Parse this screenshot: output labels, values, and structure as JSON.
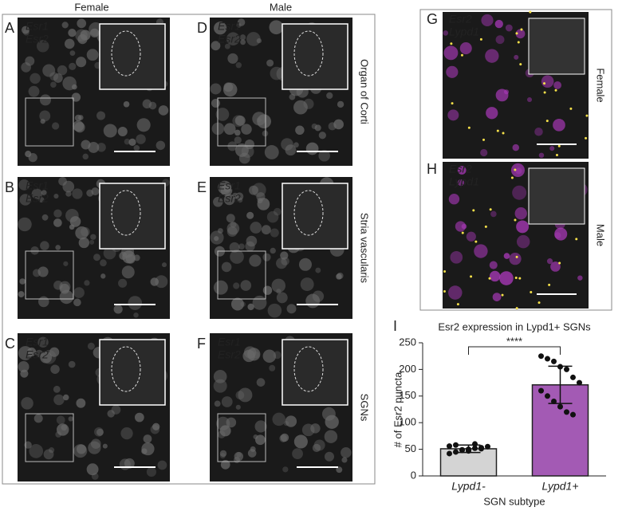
{
  "figure": {
    "column_headers": [
      "Female",
      "Male"
    ],
    "row_labels": [
      "Organ of Corti",
      "Stria vascularis",
      "SGNs"
    ],
    "panels": [
      {
        "letter": "A",
        "labels": [
          "Esr1",
          "Esr2"
        ]
      },
      {
        "letter": "B",
        "labels": [
          "Esr1",
          "Esr2"
        ]
      },
      {
        "letter": "C",
        "labels": [
          "Esr1",
          "Esr2"
        ]
      },
      {
        "letter": "D",
        "labels": [
          "Esr1",
          "Esr2"
        ]
      },
      {
        "letter": "E",
        "labels": [
          "Esr1",
          "Esr2"
        ]
      },
      {
        "letter": "F",
        "labels": [
          "Esr1",
          "Esr2"
        ]
      }
    ],
    "right_panels": [
      {
        "letter": "G",
        "labels": [
          "Esr2",
          "Lypd1"
        ],
        "side_label": "Female"
      },
      {
        "letter": "H",
        "labels": [
          "Esr2",
          "Lypd1"
        ],
        "side_label": "Male"
      }
    ]
  },
  "chart_data": {
    "type": "bar",
    "panel_letter": "I",
    "title": "Esr2 expression in Lypd1+ SGNs",
    "ylabel": "# of Esr2 puncta",
    "xlabel": "SGN subtype",
    "categories": [
      "Lypd1-",
      "Lypd1+"
    ],
    "values": [
      51,
      171
    ],
    "errors": [
      7,
      35
    ],
    "colors": [
      "#d4d4d4",
      "#a35ab4"
    ],
    "points": [
      [
        42,
        45,
        48,
        50,
        52,
        53,
        55,
        56,
        58,
        49,
        47,
        60,
        51
      ],
      [
        225,
        220,
        215,
        205,
        200,
        185,
        175,
        160,
        150,
        140,
        130,
        120,
        115
      ]
    ],
    "significance": "****",
    "ylim": [
      0,
      250
    ],
    "yticks": [
      0,
      50,
      100,
      150,
      200,
      250
    ]
  }
}
